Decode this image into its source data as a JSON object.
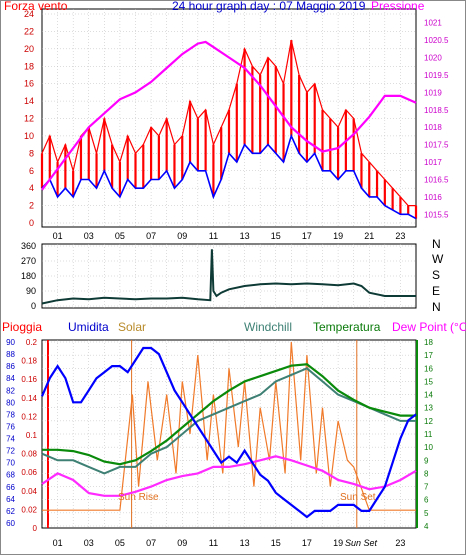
{
  "header": {
    "left_label": "Forza vento",
    "center_title": "24 hour graph day : 07 Maggio 2019",
    "right_label": "Pressione"
  },
  "wind_dir_labels": [
    "N",
    "W",
    "S",
    "E",
    "N"
  ],
  "bottom_labels": {
    "pioggia": "Pioggia",
    "umidita": "Umidita",
    "solar": "Solar",
    "windchill": "Windchill",
    "temperatura": "Temperatura",
    "dewpoint": "Dew Point (°C)"
  },
  "annotations": {
    "sunrise": "Sun Rise",
    "sunset": "Sun Set",
    "sunset_tick": "Sun Set"
  },
  "colors": {
    "wind_gust": "#ff0000",
    "wind_avg": "#0000ff",
    "pressure": "#ff00ff",
    "direction": "#0f3b36",
    "rain": "#ff0000",
    "humidity": "#0000ff",
    "solar": "#f07a2a",
    "windchill": "#3e8074",
    "temperature": "#0a8a0a",
    "dewpoint": "#ff2aff",
    "axis": "#666666"
  },
  "chart_data": [
    {
      "type": "line",
      "title": "24 hour graph day : 07 Maggio 2019",
      "x_ticks": [
        "01",
        "03",
        "05",
        "07",
        "09",
        "11",
        "13",
        "15",
        "17",
        "19",
        "21",
        "23"
      ],
      "left_axis": {
        "label": "Forza vento",
        "ticks": [
          0,
          2,
          4,
          6,
          8,
          10,
          12,
          14,
          16,
          18,
          20,
          22,
          24
        ],
        "ylim": [
          0,
          24
        ]
      },
      "right_axis": {
        "label": "Pressione",
        "ticks": [
          1015.5,
          1016,
          1016.5,
          1017,
          1017.5,
          1018,
          1018.5,
          1019,
          1019.5,
          1020,
          1020.5,
          1021
        ],
        "ylim": [
          1015.25,
          1021.25
        ]
      },
      "x_range_hours": [
        0,
        24
      ],
      "series": [
        {
          "name": "Forza vento",
          "axis": "left",
          "style": "gust",
          "x": [
            0,
            0.5,
            1,
            1.5,
            2,
            2.5,
            3,
            3.5,
            4,
            4.5,
            5,
            5.5,
            6,
            6.5,
            7,
            7.5,
            8,
            8.5,
            9,
            9.5,
            10,
            10.5,
            11,
            11.5,
            12,
            12.5,
            13,
            13.5,
            14,
            14.5,
            15,
            15.5,
            16,
            16.5,
            17,
            17.5,
            18,
            18.5,
            19,
            19.5,
            20,
            20.5,
            21,
            21.5,
            22,
            22.5,
            23,
            23.5,
            24
          ],
          "y": [
            8,
            10,
            7,
            9,
            6,
            10,
            11,
            8,
            12,
            9,
            7,
            10,
            8,
            9,
            11,
            10,
            12,
            9,
            10,
            14,
            12,
            13,
            9,
            11,
            13,
            16,
            20,
            18,
            17,
            19,
            18,
            16,
            21,
            17,
            15,
            16,
            13,
            12,
            11,
            13,
            12,
            8,
            7,
            6,
            5,
            4,
            3,
            2,
            2
          ]
        },
        {
          "name": "Wind avg",
          "axis": "left",
          "style": "avg",
          "x": [
            0,
            0.5,
            1,
            1.5,
            2,
            2.5,
            3,
            3.5,
            4,
            4.5,
            5,
            5.5,
            6,
            6.5,
            7,
            7.5,
            8,
            8.5,
            9,
            9.5,
            10,
            10.5,
            11,
            11.5,
            12,
            12.5,
            13,
            13.5,
            14,
            14.5,
            15,
            15.5,
            16,
            16.5,
            17,
            17.5,
            18,
            18.5,
            19,
            19.5,
            20,
            20.5,
            21,
            21.5,
            22,
            22.5,
            23,
            23.5,
            24
          ],
          "y": [
            4,
            5,
            3,
            4,
            3,
            5,
            5,
            4,
            6,
            4,
            3,
            5,
            4,
            4,
            5,
            5,
            6,
            4,
            5,
            7,
            6,
            6,
            3,
            5,
            8,
            7,
            9,
            8,
            8,
            9,
            8,
            7,
            10,
            8,
            7,
            8,
            6,
            6,
            5,
            6,
            6,
            4,
            3,
            3,
            2,
            1.5,
            1,
            1,
            0.5
          ]
        },
        {
          "name": "Pressione",
          "axis": "right",
          "x": [
            0,
            1,
            2,
            3,
            4,
            5,
            6,
            7,
            8,
            9,
            10,
            10.5,
            11,
            12,
            13,
            14,
            15,
            16,
            17,
            18,
            19,
            20,
            21,
            22,
            23,
            24
          ],
          "y": [
            1016.2,
            1016.8,
            1017.4,
            1018,
            1018.4,
            1018.8,
            1019,
            1019.3,
            1019.7,
            1020.1,
            1020.4,
            1020.45,
            1020.3,
            1020.0,
            1019.7,
            1019.2,
            1018.6,
            1018.0,
            1017.6,
            1017.3,
            1017.4,
            1017.8,
            1018.3,
            1018.9,
            1018.9,
            1018.7
          ]
        }
      ]
    },
    {
      "type": "line",
      "title": "",
      "left_axis": {
        "ticks": [
          0,
          90,
          180,
          270,
          360
        ],
        "ylim": [
          0,
          360
        ]
      },
      "right_labels": [
        "N",
        "W",
        "S",
        "E",
        "N"
      ],
      "x_range_hours": [
        0,
        24
      ],
      "series": [
        {
          "name": "Direzione",
          "x": [
            0,
            1,
            2,
            3,
            4,
            5,
            6,
            7,
            8,
            9,
            10,
            10.8,
            10.9,
            11,
            11.2,
            11.5,
            12,
            13,
            14,
            15,
            16,
            17,
            18,
            19,
            20,
            20.5,
            21,
            22,
            23,
            24
          ],
          "y": [
            15,
            35,
            45,
            40,
            50,
            45,
            40,
            45,
            45,
            50,
            40,
            35,
            340,
            90,
            60,
            80,
            100,
            120,
            130,
            135,
            130,
            135,
            130,
            125,
            135,
            120,
            80,
            60,
            60,
            60
          ]
        }
      ]
    },
    {
      "type": "line",
      "title": "",
      "x_ticks": [
        "01",
        "03",
        "05",
        "07",
        "09",
        "11",
        "13",
        "15",
        "17",
        "19",
        "21",
        "23"
      ],
      "left_axes": [
        {
          "label": "Pioggia",
          "ticks": [
            0,
            0.02,
            0.04,
            0.06,
            0.08,
            0.1,
            0.12,
            0.14,
            0.16,
            0.18,
            0.2
          ],
          "ylim": [
            0,
            0.2
          ]
        },
        {
          "label": "Umidita",
          "ticks": [
            60,
            62,
            64,
            66,
            68,
            70,
            72,
            74,
            76,
            78,
            80,
            82,
            84,
            86,
            88,
            90
          ],
          "ylim": [
            60,
            90
          ]
        }
      ],
      "right_axis": {
        "label": "Dew Point (°C)",
        "ticks": [
          4,
          5,
          6,
          7,
          8,
          9,
          10,
          11,
          12,
          13,
          14,
          15,
          16,
          17,
          18
        ],
        "ylim": [
          4,
          18
        ]
      },
      "x_range_hours": [
        0,
        24
      ],
      "series": [
        {
          "name": "Umidita",
          "x": [
            0,
            0.5,
            1,
            1.5,
            2,
            2.5,
            3,
            3.5,
            4,
            4.5,
            5,
            5.5,
            6,
            6.5,
            7,
            7.5,
            8,
            8.5,
            9,
            9.5,
            10,
            10.5,
            11,
            11.5,
            12,
            12.5,
            13,
            13.5,
            14,
            14.5,
            15,
            15.5,
            16,
            16.5,
            17,
            17.5,
            18,
            18.5,
            19,
            19.5,
            20,
            20.5,
            21,
            21.5,
            22,
            22.5,
            23,
            23.5,
            24
          ],
          "y": [
            81,
            84,
            86,
            84,
            80,
            80,
            82,
            84,
            85,
            86,
            86,
            85,
            87,
            89,
            89,
            88,
            85,
            82,
            80,
            78,
            76,
            74,
            72,
            70,
            71,
            70,
            72,
            70,
            68,
            67,
            65,
            64,
            63,
            62,
            61,
            62,
            62,
            62,
            63,
            63,
            63,
            62,
            62,
            64,
            66,
            70,
            74,
            77,
            78
          ]
        },
        {
          "name": "Solar",
          "axis": "dewpoint",
          "x": [
            0,
            4,
            5,
            5.8,
            6.2,
            6.8,
            7.4,
            8,
            8.6,
            9,
            9.5,
            10,
            10.6,
            11,
            11.6,
            12,
            12.6,
            13,
            13.6,
            14,
            14.6,
            15,
            15.6,
            16,
            16.6,
            17,
            17.6,
            18,
            18.5,
            19,
            19.6,
            20,
            21,
            24
          ],
          "y": [
            5.2,
            5.2,
            5.2,
            14,
            7,
            15,
            9,
            14,
            8,
            15,
            11,
            17,
            9,
            14,
            8,
            16,
            10,
            15,
            7,
            13,
            9,
            15,
            8,
            18,
            9,
            17,
            8,
            13,
            7,
            12,
            9,
            8.5,
            5.2,
            5.2
          ]
        },
        {
          "name": "Windchill",
          "axis": "dewpoint",
          "x": [
            0,
            1,
            2,
            3,
            4,
            5,
            6,
            7,
            8,
            9,
            10,
            11,
            12,
            13,
            14,
            15,
            16,
            17,
            18,
            19,
            20,
            21,
            22,
            23,
            24
          ],
          "y": [
            9.5,
            9,
            9,
            8.5,
            8,
            8.5,
            8.5,
            9.5,
            10,
            11,
            12,
            12.5,
            13,
            13.5,
            14,
            15,
            15.5,
            16,
            15,
            14,
            13.5,
            13,
            12.5,
            12,
            12
          ]
        },
        {
          "name": "Temperatura",
          "axis": "dewpoint",
          "x": [
            0,
            1,
            2,
            3,
            4,
            5,
            6,
            7,
            8,
            9,
            10,
            11,
            12,
            13,
            14,
            15,
            16,
            17,
            18,
            19,
            20,
            21,
            22,
            23,
            24
          ],
          "y": [
            9.8,
            9.8,
            9.7,
            9.4,
            8.9,
            8.7,
            9,
            9.7,
            10.5,
            11.5,
            12.5,
            13.5,
            14.3,
            15,
            15.4,
            15.8,
            16.2,
            16.3,
            15.4,
            14.3,
            13.6,
            13,
            12.7,
            12.4,
            12.4
          ]
        },
        {
          "name": "Dew Point",
          "axis": "dewpoint",
          "x": [
            0,
            1,
            2,
            3,
            4,
            5,
            6,
            7,
            8,
            9,
            10,
            11,
            12,
            13,
            14,
            15,
            16,
            17,
            18,
            19,
            20,
            21,
            22,
            23,
            24
          ],
          "y": [
            7.2,
            8,
            7.5,
            6.5,
            6.3,
            6.3,
            6.6,
            7,
            7.5,
            7.8,
            8,
            8.5,
            8.5,
            8.7,
            9,
            9.3,
            9,
            8.6,
            8.2,
            7.5,
            7.2,
            6.8,
            7,
            7.5,
            8.2
          ]
        },
        {
          "name": "Pioggia",
          "axis": "rain",
          "x": [],
          "y": []
        }
      ]
    }
  ]
}
